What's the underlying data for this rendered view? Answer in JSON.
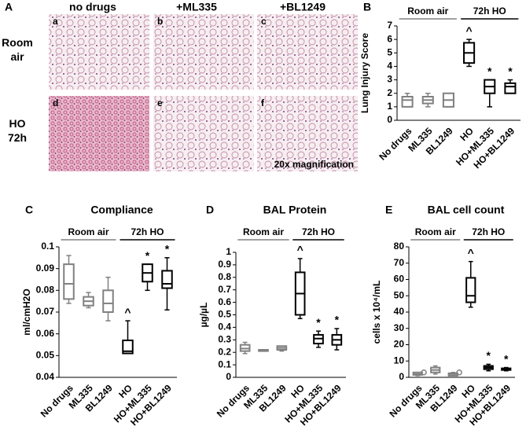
{
  "panel_a": {
    "panel": "A",
    "columns": [
      "no drugs",
      "+ML335",
      "+BL1249"
    ],
    "rows": [
      "Room air",
      "HO 72h"
    ],
    "images": [
      "a",
      "b",
      "c",
      "d",
      "e",
      "f"
    ],
    "note": "20x magnification"
  },
  "chart_data": [
    {
      "type": "box",
      "panel": "B",
      "ylabel": "Lung Injury Score",
      "groups": [
        {
          "label": "Room air",
          "color": "#808080"
        },
        {
          "label": "72h HO",
          "color": "#000000"
        }
      ],
      "categories": [
        "No drugs",
        "ML335",
        "BL1249",
        "HO",
        "HO+ML335",
        "HO+BL1249"
      ],
      "colors": [
        "#808080",
        "#808080",
        "#808080",
        "#000000",
        "#000000",
        "#000000"
      ],
      "boxes": [
        {
          "min": 1,
          "q1": 1,
          "median": 1.5,
          "q3": 1.75,
          "max": 2
        },
        {
          "min": 1,
          "q1": 1.25,
          "median": 1.5,
          "q3": 1.75,
          "max": 2
        },
        {
          "min": 1,
          "q1": 1,
          "median": 1.5,
          "q3": 2,
          "max": 2
        },
        {
          "min": 4,
          "q1": 4.25,
          "median": 5,
          "q3": 5.75,
          "max": 6
        },
        {
          "min": 1,
          "q1": 2,
          "median": 2.5,
          "q3": 3,
          "max": 3
        },
        {
          "min": 2,
          "q1": 2,
          "median": 2.5,
          "q3": 2.75,
          "max": 3
        }
      ],
      "markers": [
        null,
        null,
        null,
        "^",
        "*",
        "*"
      ],
      "ylim": [
        0,
        7
      ],
      "yticks": [
        0,
        1,
        2,
        3,
        4,
        5,
        6,
        7
      ]
    },
    {
      "type": "box",
      "panel": "C",
      "title": "Compliance",
      "ylabel": "ml/cmH2O",
      "groups": [
        {
          "label": "Room air",
          "color": "#808080"
        },
        {
          "label": "72h HO",
          "color": "#000000"
        }
      ],
      "categories": [
        "No drugs",
        "ML335",
        "BL1249",
        "HO",
        "HO+ML335",
        "HO+BL1249"
      ],
      "colors": [
        "#808080",
        "#808080",
        "#808080",
        "#000000",
        "#000000",
        "#000000"
      ],
      "boxes": [
        {
          "min": 0.074,
          "q1": 0.076,
          "median": 0.083,
          "q3": 0.092,
          "max": 0.096
        },
        {
          "min": 0.072,
          "q1": 0.073,
          "median": 0.075,
          "q3": 0.077,
          "max": 0.079
        },
        {
          "min": 0.066,
          "q1": 0.07,
          "median": 0.074,
          "q3": 0.08,
          "max": 0.086
        },
        {
          "min": 0.051,
          "q1": 0.051,
          "median": 0.052,
          "q3": 0.057,
          "max": 0.066
        },
        {
          "min": 0.08,
          "q1": 0.084,
          "median": 0.088,
          "q3": 0.092,
          "max": 0.092
        },
        {
          "min": 0.071,
          "q1": 0.081,
          "median": 0.083,
          "q3": 0.089,
          "max": 0.095
        }
      ],
      "markers": [
        null,
        null,
        null,
        "^",
        "*",
        "*"
      ],
      "ylim": [
        0.04,
        0.1
      ],
      "yticks": [
        0.04,
        0.05,
        0.06,
        0.07,
        0.08,
        0.09,
        0.1
      ]
    },
    {
      "type": "box",
      "panel": "D",
      "title": "BAL Protein",
      "ylabel": "µg/µL",
      "groups": [
        {
          "label": "Room air",
          "color": "#808080"
        },
        {
          "label": "72h HO",
          "color": "#000000"
        }
      ],
      "categories": [
        "No drugs",
        "ML335",
        "BL1249",
        "HO",
        "HO+ML335",
        "HO+BL1249"
      ],
      "colors": [
        "#808080",
        "#808080",
        "#808080",
        "#000000",
        "#000000",
        "#000000"
      ],
      "boxes": [
        {
          "min": 0.19,
          "q1": 0.21,
          "median": 0.23,
          "q3": 0.26,
          "max": 0.28
        },
        {
          "min": 0.21,
          "q1": 0.21,
          "median": 0.215,
          "q3": 0.22,
          "max": 0.22
        },
        {
          "min": 0.21,
          "q1": 0.22,
          "median": 0.235,
          "q3": 0.25,
          "max": 0.25
        },
        {
          "min": 0.47,
          "q1": 0.5,
          "median": 0.67,
          "q3": 0.84,
          "max": 0.95
        },
        {
          "min": 0.24,
          "q1": 0.27,
          "median": 0.31,
          "q3": 0.34,
          "max": 0.37
        },
        {
          "min": 0.22,
          "q1": 0.26,
          "median": 0.3,
          "q3": 0.34,
          "max": 0.39
        }
      ],
      "markers": [
        null,
        null,
        null,
        "^",
        "*",
        "*"
      ],
      "ylim": [
        0,
        1
      ],
      "yticks": [
        0,
        0.1,
        0.2,
        0.3,
        0.4,
        0.5,
        0.6,
        0.7,
        0.8,
        0.9,
        1
      ]
    },
    {
      "type": "box",
      "panel": "E",
      "title": "BAL cell count",
      "ylabel": "cells x 10⁴/mL",
      "groups": [
        {
          "label": "Room air",
          "color": "#808080"
        },
        {
          "label": "72h HO",
          "color": "#000000"
        }
      ],
      "categories": [
        "No drugs",
        "ML335",
        "BL1249",
        "HO",
        "HO+ML335",
        "HO+BL1249"
      ],
      "colors": [
        "#808080",
        "#808080",
        "#808080",
        "#000000",
        "#000000",
        "#000000"
      ],
      "boxes": [
        {
          "min": 1,
          "q1": 1.5,
          "median": 2,
          "q3": 3,
          "max": 3
        },
        {
          "min": 2,
          "q1": 3,
          "median": 4.5,
          "q3": 6,
          "max": 7
        },
        {
          "min": 1,
          "q1": 1,
          "median": 2,
          "q3": 2.5,
          "max": 3
        },
        {
          "min": 43,
          "q1": 46,
          "median": 50,
          "q3": 61,
          "max": 71
        },
        {
          "min": 4,
          "q1": 5,
          "median": 6,
          "q3": 7,
          "max": 8
        },
        {
          "min": 4,
          "q1": 4.5,
          "median": 5,
          "q3": 5.5,
          "max": 6
        }
      ],
      "outliers": [
        [
          3
        ],
        [],
        [
          3
        ],
        [],
        [],
        []
      ],
      "markers": [
        null,
        null,
        null,
        "^",
        "*",
        "*"
      ],
      "ylim": [
        0,
        80
      ],
      "yticks": [
        0,
        10,
        20,
        30,
        40,
        50,
        60,
        70,
        80
      ]
    }
  ]
}
